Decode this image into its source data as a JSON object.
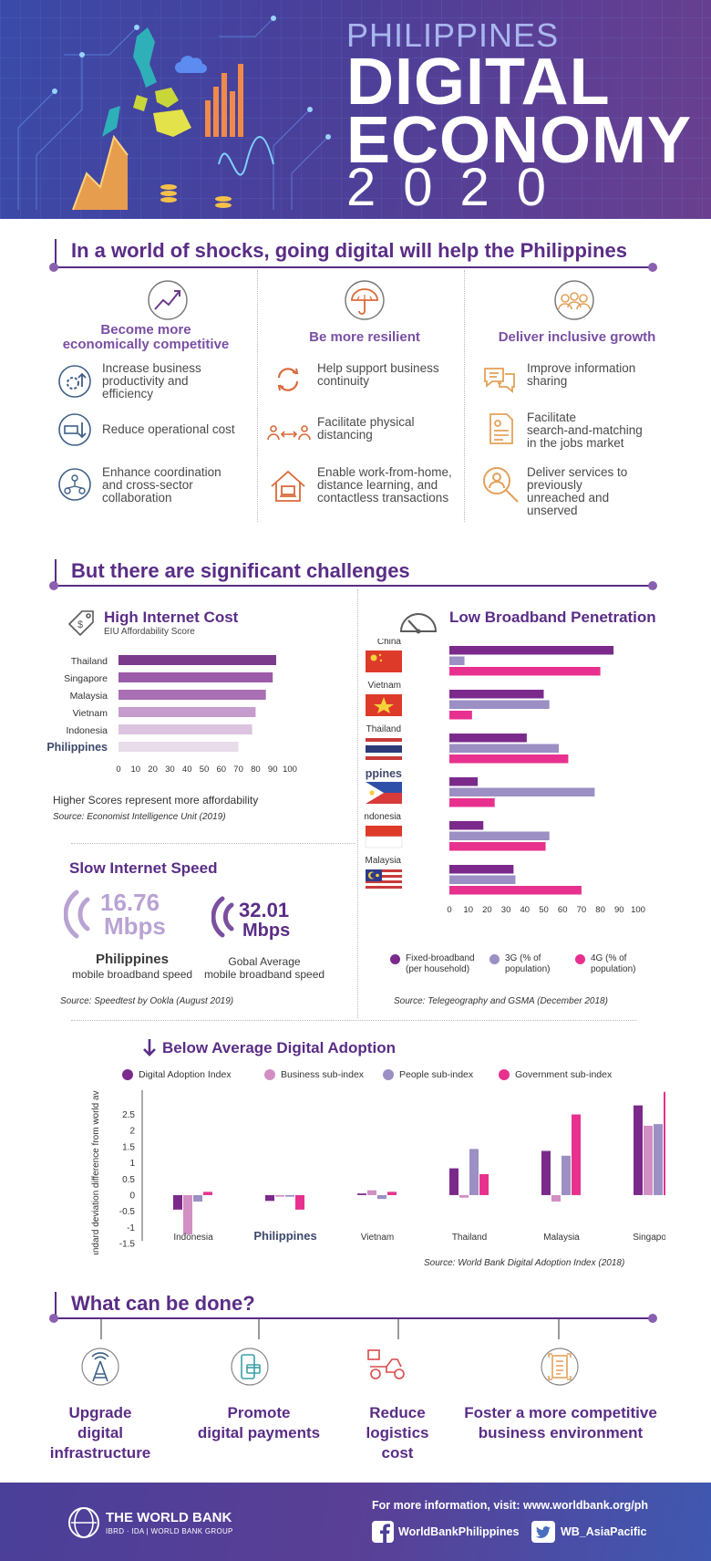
{
  "hero": {
    "line1": "PHILIPPINES",
    "line2": "DIGITAL",
    "line3": "ECONOMY",
    "year": "2020"
  },
  "section1": {
    "title": "In a world of shocks, going digital will help the Philippines",
    "columns": [
      {
        "heading": [
          "Become more",
          "economically competitive"
        ],
        "icon": "trend-up-icon",
        "items": [
          {
            "icon": "gear-up-icon",
            "lines": [
              "Increase business",
              "productivity and",
              "efficiency"
            ]
          },
          {
            "icon": "cost-down-icon",
            "lines": [
              "Reduce operational cost"
            ]
          },
          {
            "icon": "network-icon",
            "lines": [
              "Enhance coordination",
              "and cross-sector",
              "collaboration"
            ]
          }
        ]
      },
      {
        "heading": [
          "Be more resilient"
        ],
        "icon": "umbrella-icon",
        "items": [
          {
            "icon": "refresh-icon",
            "lines": [
              "Help support business",
              "continuity"
            ]
          },
          {
            "icon": "distance-icon",
            "lines": [
              "Facilitate physical",
              "distancing"
            ]
          },
          {
            "icon": "home-work-icon",
            "lines": [
              "Enable work-from-home,",
              "distance learning, and",
              "contactless transactions"
            ]
          }
        ]
      },
      {
        "heading": [
          "Deliver inclusive growth"
        ],
        "icon": "people-icon",
        "items": [
          {
            "icon": "chat-icon",
            "lines": [
              "Improve information",
              "sharing"
            ]
          },
          {
            "icon": "resume-icon",
            "lines": [
              "Facilitate",
              "search-and-matching",
              "in the jobs market"
            ]
          },
          {
            "icon": "search-person-icon",
            "lines": [
              "Deliver services to",
              "previously",
              "unreached and",
              "unserved"
            ]
          }
        ]
      }
    ]
  },
  "section2": {
    "title": "But there are significant challenges",
    "cost_title": "High Internet Cost",
    "cost_subtitle": "EIU Affordability Score",
    "cost_note": "Higher Scores represent more affordability",
    "cost_source": "Source: Economist Intelligence Unit (2019)",
    "speed_title": "Slow Internet Speed",
    "speed_ph_value": "16.76",
    "speed_ph_unit": "Mbps",
    "speed_ph_label1": "Philippines",
    "speed_ph_label2": "mobile broadband speed",
    "speed_gl_value": "32.01",
    "speed_gl_unit": "Mbps",
    "speed_gl_label1": "Gobal Average",
    "speed_gl_label2": "mobile broadband speed",
    "speed_source": "Source: Speedtest by Ookla (August 2019)",
    "bb_title": "Low Broadband Penetration",
    "bb_source": "Source: Telegeography and GSMA (December 2018)",
    "adopt_title": "Below Average Digital Adoption",
    "adopt_source": "Source: World Bank Digital Adoption Index (2018)"
  },
  "chart_data": [
    {
      "type": "bar",
      "orientation": "horizontal",
      "categories": [
        "Thailand",
        "Singapore",
        "Malaysia",
        "Vietnam",
        "Indonesia",
        "Philippines"
      ],
      "values": [
        92,
        90,
        86,
        80,
        78,
        70
      ],
      "colors": [
        "#7b3a8c",
        "#9b5ba8",
        "#a86fb4",
        "#c59ccd",
        "#dcc4e0",
        "#e8dceb"
      ],
      "xticks": [
        0,
        10,
        20,
        30,
        40,
        50,
        60,
        70,
        80,
        90,
        100
      ],
      "xlim": [
        0,
        100
      ],
      "title": "High Internet Cost",
      "subtitle": "EIU Affordability Score",
      "xlabel": "",
      "ylabel": ""
    },
    {
      "type": "bar",
      "orientation": "horizontal",
      "categories": [
        "China",
        "Vietnam",
        "Thailand",
        "Philippines",
        "Indonesia",
        "Malaysia"
      ],
      "series": [
        {
          "name": "Fixed-broadband (per household)",
          "color": "#7b2a8c",
          "values": [
            87,
            50,
            41,
            15,
            18,
            34
          ]
        },
        {
          "name": "3G (% of population)",
          "color": "#9b8fc3",
          "values": [
            8,
            53,
            58,
            77,
            53,
            35
          ]
        },
        {
          "name": "4G (% of population)",
          "color": "#e8318e",
          "values": [
            80,
            12,
            63,
            24,
            51,
            70
          ]
        }
      ],
      "xticks": [
        0,
        10,
        20,
        30,
        40,
        50,
        60,
        70,
        80,
        90,
        100
      ],
      "xlim": [
        0,
        100
      ],
      "title": "Low Broadband Penetration",
      "xlabel": "",
      "ylabel": ""
    },
    {
      "type": "bar",
      "categories": [
        "Indonesia",
        "Philippines",
        "Vietnam",
        "Thailand",
        "Malaysia",
        "Singapore"
      ],
      "series": [
        {
          "name": "Digital Adoption Index",
          "color": "#7b2a8c",
          "values": [
            -0.45,
            -0.18,
            0.05,
            0.83,
            1.37,
            2.78
          ]
        },
        {
          "name": "Business sub-index",
          "color": "#d28fc3",
          "values": [
            -1.22,
            -0.05,
            0.15,
            -0.08,
            -0.2,
            2.15
          ]
        },
        {
          "name": "People sub-index",
          "color": "#9b8fc3",
          "values": [
            -0.2,
            -0.05,
            -0.12,
            1.43,
            1.22,
            2.2
          ]
        },
        {
          "name": "Government sub-index",
          "color": "#e8318e",
          "values": [
            0.1,
            -0.45,
            0.1,
            0.65,
            2.5,
            3.2
          ]
        }
      ],
      "yticks": [
        -1.5,
        -1,
        -0.5,
        0,
        0.5,
        1,
        1.5,
        2,
        2.5
      ],
      "ylim": [
        -1.5,
        3.25
      ],
      "title": "Below Average Digital Adoption",
      "xlabel": "",
      "ylabel": "Standard deviation difference from world average"
    }
  ],
  "section3": {
    "title": "What can be done?",
    "items": [
      {
        "icon": "antenna-icon",
        "lines": [
          "Upgrade",
          "digital",
          "infrastructure"
        ]
      },
      {
        "icon": "payment-icon",
        "lines": [
          "Promote",
          "digital payments"
        ]
      },
      {
        "icon": "delivery-icon",
        "lines": [
          "Reduce",
          "logistics",
          "cost"
        ]
      },
      {
        "icon": "document-icon",
        "lines": [
          "Foster a more competitive",
          "business environment"
        ]
      }
    ]
  },
  "footer": {
    "org": "THE WORLD BANK",
    "org_sub": "IBRD · IDA | WORLD BANK GROUP",
    "info": "For more information, visit: www.worldbank.org/ph",
    "facebook": "WorldBankPhilippines",
    "twitter": "WB_AsiaPacific"
  },
  "colors": {
    "primary": "#5a2d86",
    "accent": "#e8318e",
    "orange": "#d96a3a"
  }
}
